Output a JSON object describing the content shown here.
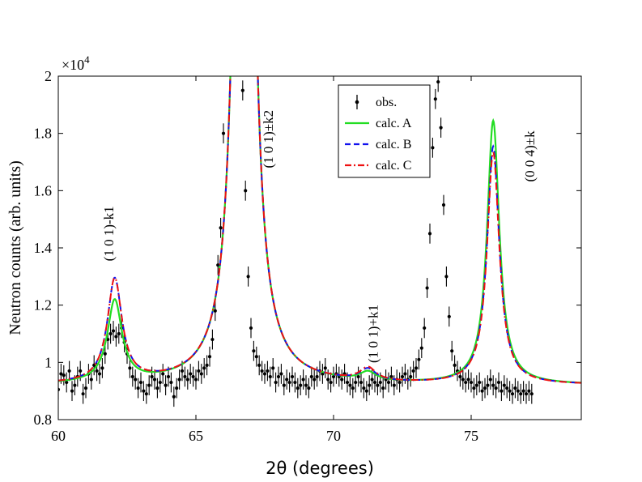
{
  "chart_data": {
    "type": "scatter",
    "title": "",
    "xlabel": "2θ (degrees)",
    "ylabel": "Neutron counts (arb. units)",
    "y_multiplier": "×10",
    "y_multiplier_exp": "4",
    "xlim": [
      60,
      79
    ],
    "ylim": [
      0.8,
      2.0
    ],
    "x_ticks": [
      60,
      65,
      70,
      75
    ],
    "x_tick_labels": [
      "60",
      "65",
      "70",
      "75"
    ],
    "y_ticks": [
      0.8,
      1.0,
      1.2,
      1.4,
      1.6,
      1.8,
      2.0
    ],
    "y_tick_labels": [
      "0.8",
      "1",
      "1.2",
      "1.4",
      "1.6",
      "1.8",
      "2"
    ],
    "grid": false,
    "legend_position": "top-right",
    "legend": [
      {
        "label": "obs.",
        "color": "#000000",
        "style": "errorbar"
      },
      {
        "label": "calc. A",
        "color": "#22dd22",
        "style": "solid"
      },
      {
        "label": "calc. B",
        "color": "#1111ee",
        "style": "dashed"
      },
      {
        "label": "calc. C",
        "color": "#ee1111",
        "style": "dashdot"
      }
    ],
    "annotations": [
      {
        "text": "(1 0 1)-k1",
        "x": 62.0,
        "y": 1.45
      },
      {
        "text": "(1 0 1)±k2",
        "x": 67.8,
        "y": 1.78
      },
      {
        "text": "(1 0 1)+k1",
        "x": 71.6,
        "y": 1.1
      },
      {
        "text": "(0 0 4)±k",
        "x": 77.3,
        "y": 1.72
      }
    ],
    "background": 0.92,
    "peaks": [
      {
        "center": 62.05,
        "A_height": 0.285,
        "B_height": 0.36,
        "C_height": 0.36,
        "width": 0.32
      },
      {
        "center": 66.75,
        "A_height": 4.5,
        "B_height": 4.5,
        "C_height": 4.5,
        "width": 0.28,
        "note": "main peak, clipped at top"
      },
      {
        "center": 71.25,
        "A_height": 0.03,
        "B_height": 0.04,
        "C_height": 0.045,
        "width": 0.35
      },
      {
        "center": 75.8,
        "A_height": 0.92,
        "B_height": 0.83,
        "C_height": 0.81,
        "width": 0.27
      }
    ],
    "observed": {
      "x_start": 60.0,
      "x_step": 0.1,
      "error_bar": 0.035,
      "y": [
        0.905,
        0.96,
        0.955,
        0.93,
        0.97,
        0.9,
        0.92,
        0.95,
        0.97,
        0.89,
        0.91,
        0.96,
        0.94,
        0.99,
        0.97,
        0.96,
        0.98,
        1.03,
        1.08,
        1.1,
        1.11,
        1.09,
        1.1,
        1.12,
        1.07,
        1.03,
        0.98,
        0.95,
        0.94,
        0.91,
        0.93,
        0.9,
        0.89,
        0.92,
        0.95,
        0.94,
        0.91,
        0.93,
        0.96,
        0.92,
        0.95,
        0.93,
        0.88,
        0.91,
        0.94,
        0.97,
        0.95,
        0.94,
        0.96,
        0.95,
        0.94,
        0.97,
        0.96,
        0.98,
        0.99,
        1.02,
        1.08,
        1.18,
        1.34,
        1.47,
        1.8,
        2.2,
        2.6,
        2.8,
        2.6,
        2.3,
        2.1,
        1.95,
        1.6,
        1.3,
        1.12,
        1.04,
        1.02,
        0.99,
        0.97,
        0.96,
        0.97,
        0.95,
        0.98,
        0.93,
        0.95,
        0.96,
        0.92,
        0.94,
        0.93,
        0.95,
        0.93,
        0.91,
        0.92,
        0.94,
        0.92,
        0.91,
        0.95,
        0.94,
        0.95,
        0.97,
        0.96,
        0.98,
        0.94,
        0.93,
        0.95,
        0.96,
        0.95,
        0.94,
        0.96,
        0.93,
        0.92,
        0.91,
        0.93,
        0.95,
        0.93,
        0.91,
        0.9,
        0.92,
        0.94,
        0.93,
        0.92,
        0.93,
        0.91,
        0.94,
        0.93,
        0.95,
        0.92,
        0.94,
        0.93,
        0.95,
        0.96,
        0.94,
        0.95,
        0.97,
        0.98,
        1.01,
        1.05,
        1.12,
        1.26,
        1.45,
        1.75,
        1.92,
        1.98,
        1.82,
        1.55,
        1.3,
        1.16,
        1.04,
        0.99,
        0.97,
        0.95,
        0.94,
        0.93,
        0.94,
        0.93,
        0.91,
        0.92,
        0.93,
        0.9,
        0.91,
        0.92,
        0.94,
        0.92,
        0.91,
        0.93,
        0.9,
        0.92,
        0.91,
        0.9,
        0.89,
        0.91,
        0.9,
        0.89,
        0.9,
        0.89,
        0.9,
        0.89
      ]
    }
  }
}
